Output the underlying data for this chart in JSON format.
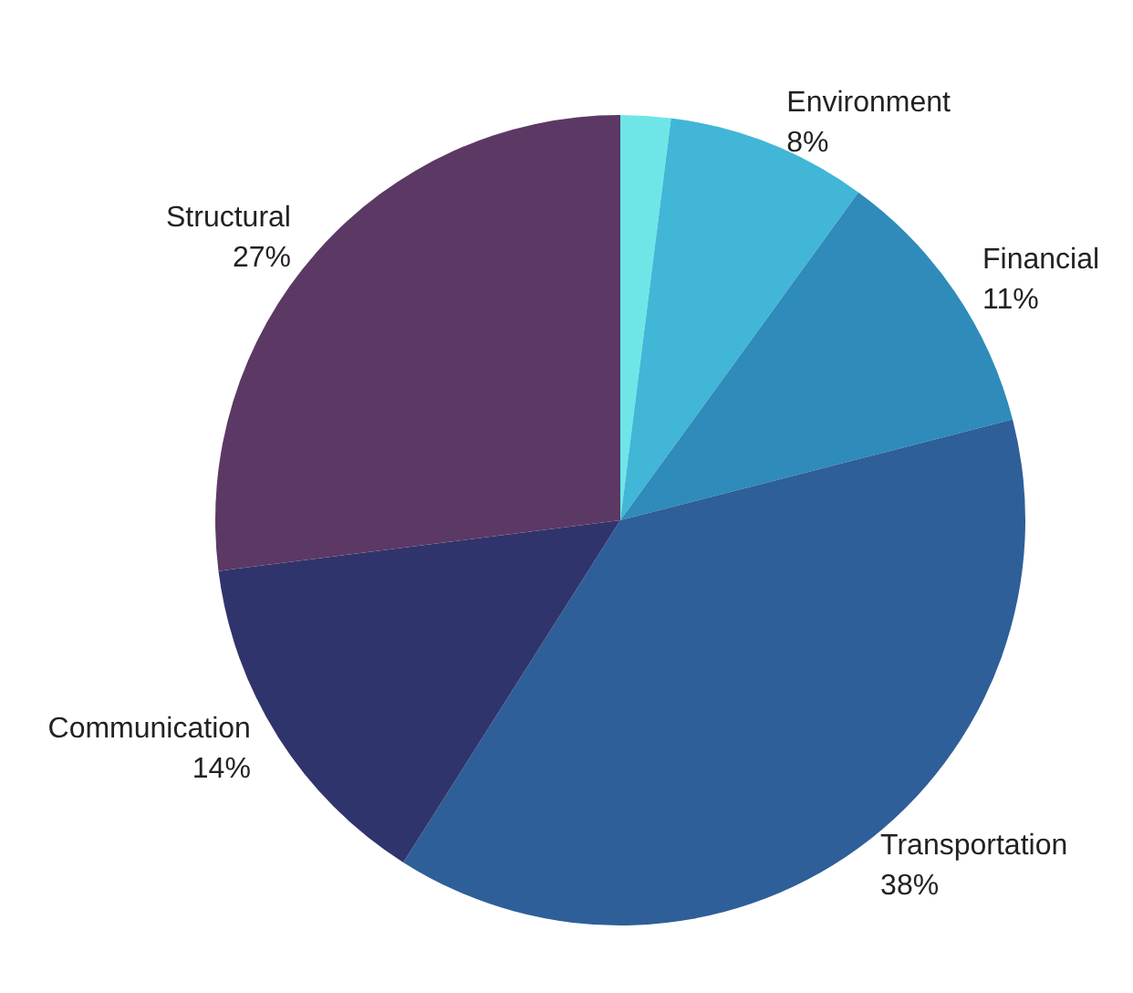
{
  "chart_data": {
    "type": "pie",
    "categories": [
      null,
      "Environment",
      "Financial",
      "Transportation",
      "Communication",
      "Structural"
    ],
    "values": [
      2,
      8,
      11,
      38,
      14,
      27
    ],
    "value_labels": [
      null,
      "8%",
      "11%",
      "38%",
      "14%",
      "27%"
    ],
    "colors": [
      "#6ee6e8",
      "#42b6d6",
      "#2e8bba",
      "#2e5f98",
      "#30346c",
      "#5c3864"
    ]
  }
}
